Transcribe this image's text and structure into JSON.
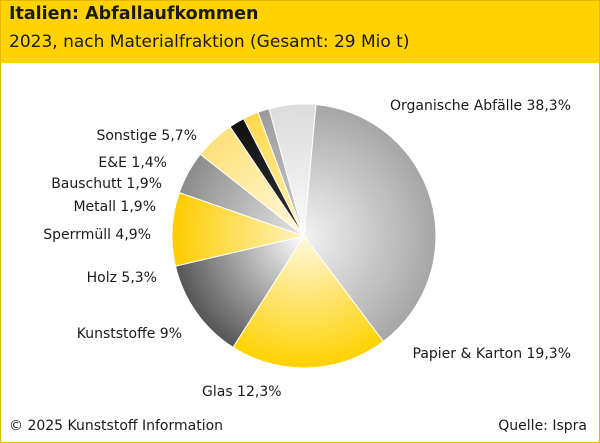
{
  "header": {
    "title": "Italien: Abfallaufkommen",
    "subtitle": "2023, nach Materialfraktion (Gesamt: 29 Mio t)"
  },
  "footer": {
    "copyright": "© 2025 Kunststoff Information",
    "source": "Quelle: Ispra"
  },
  "chart_data": {
    "type": "pie",
    "title": "Italien: Abfallaufkommen",
    "subtitle": "2023, nach Materialfraktion (Gesamt: 29 Mio t)",
    "unit": "%",
    "slices": [
      {
        "name": "Organische Abfälle",
        "value": 38.3,
        "label": "Organische Abfälle 38,3%",
        "color_inner": "#f2f2f2",
        "color_outer": "#a6a6a6"
      },
      {
        "name": "Papier & Karton",
        "value": 19.3,
        "label": "Papier & Karton 19,3%",
        "color_inner": "#fff8e0",
        "color_outer": "#ffd200"
      },
      {
        "name": "Glas",
        "value": 12.3,
        "label": "Glas 12,3%",
        "color_inner": "#ffffff",
        "color_outer": "#555555"
      },
      {
        "name": "Kunststoffe",
        "value": 9,
        "label": "Kunststoffe 9%",
        "color_inner": "#fff4c2",
        "color_outer": "#ffcc00"
      },
      {
        "name": "Holz",
        "value": 5.3,
        "label": "Holz 5,3%",
        "color_inner": "#e6e6e6",
        "color_outer": "#8c8c8c"
      },
      {
        "name": "Sperrmüll",
        "value": 4.9,
        "label": "Sperrmüll 4,9%",
        "color_inner": "#fff9dd",
        "color_outer": "#ffe17a"
      },
      {
        "name": "Metall",
        "value": 1.9,
        "label": "Metall 1,9%",
        "color_inner": "#333333",
        "color_outer": "#111111"
      },
      {
        "name": "Bauschutt",
        "value": 1.9,
        "label": "Bauschutt 1,9%",
        "color_inner": "#fff3b0",
        "color_outer": "#ffd84a"
      },
      {
        "name": "E&E",
        "value": 1.4,
        "label": "E&E 1,4%",
        "color_inner": "#cfcfcf",
        "color_outer": "#9a9a9a"
      },
      {
        "name": "Sonstige",
        "value": 5.7,
        "label": "Sonstige 5,7%",
        "color_inner": "#fafafa",
        "color_outer": "#dcdcdc"
      }
    ]
  }
}
